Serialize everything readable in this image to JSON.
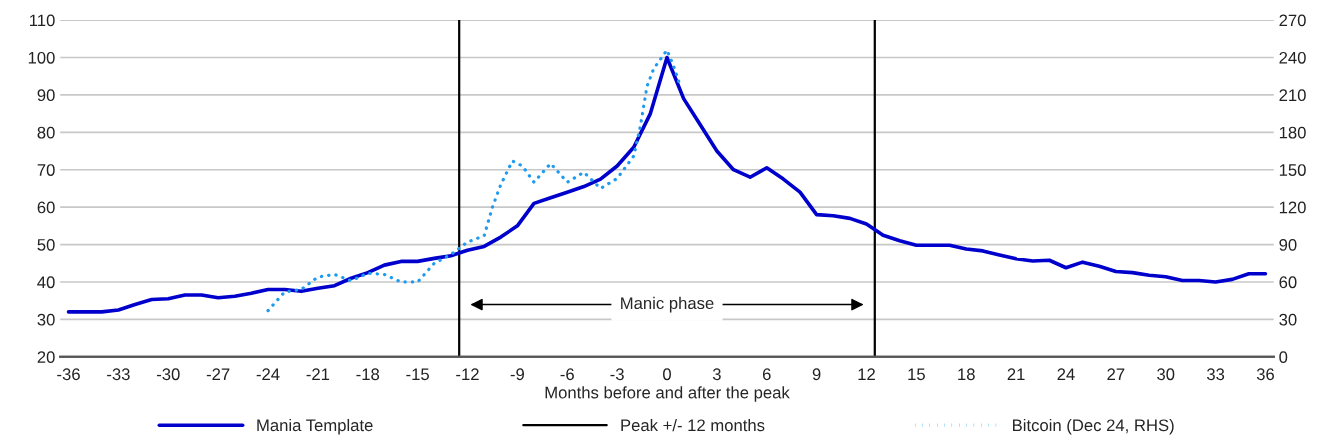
{
  "chart_data": {
    "type": "line",
    "xlabel": "Months before and after the peak",
    "x": [
      -36,
      -35,
      -34,
      -33,
      -32,
      -31,
      -30,
      -29,
      -28,
      -27,
      -26,
      -25,
      -24,
      -23,
      -22,
      -21,
      -20,
      -19,
      -18,
      -17,
      -16,
      -15,
      -14,
      -13,
      -12,
      -11,
      -10,
      -9,
      -8,
      -7,
      -6,
      -5,
      -4,
      -3,
      -2,
      -1,
      0,
      1,
      2,
      3,
      4,
      5,
      6,
      7,
      8,
      9,
      10,
      11,
      12,
      13,
      14,
      15,
      16,
      17,
      18,
      19,
      20,
      21,
      22,
      23,
      24,
      25,
      26,
      27,
      28,
      29,
      30,
      31,
      32,
      33,
      34,
      35,
      36
    ],
    "series": [
      {
        "name": "Mania Template",
        "color": "#0000cc",
        "line_style": "solid",
        "values": [
          32,
          32,
          32,
          32.5,
          34,
          35.3,
          35.5,
          36.5,
          36.5,
          35.8,
          36.2,
          37,
          38,
          38,
          37.5,
          38.3,
          39,
          41,
          42.5,
          44.5,
          45.5,
          45.5,
          46.3,
          47,
          48.5,
          49.5,
          52,
          55,
          61,
          62.5,
          64,
          65.5,
          67.5,
          71,
          76,
          85,
          100,
          89,
          82,
          75,
          70,
          68,
          70.5,
          67.5,
          64,
          58,
          57.7,
          57,
          55.5,
          52.5,
          51,
          49.8,
          49.8,
          49.8,
          48.8,
          48.3,
          47.2,
          46.2,
          45.6,
          45.8,
          43.8,
          45.3,
          44.2,
          42.8,
          42.5,
          41.8,
          41.4,
          40.4,
          40.4,
          40,
          40.7,
          42.2,
          42.2
        ]
      },
      {
        "name": "Bitcoin (Dec 24, RHS)",
        "color": "#1e9bf0",
        "line_style": "dotted",
        "axis": "y2",
        "x": [
          -24,
          -23,
          -22,
          -21,
          -20,
          -19,
          -18,
          -17,
          -16,
          -15,
          -14,
          -13,
          -12,
          -11,
          -10.5,
          -10,
          -9.3,
          -8.7,
          -8,
          -7,
          -6,
          -5,
          -4,
          -3,
          -2,
          -1.6,
          -1.2,
          -0.8,
          0,
          0.4,
          0.8
        ],
        "values": [
          37,
          52,
          54,
          64,
          66,
          61,
          67,
          66,
          60,
          60,
          75,
          82,
          92,
          97,
          120,
          138,
          157,
          153,
          140,
          155,
          140,
          148,
          135,
          143,
          161,
          185,
          217,
          231,
          246,
          233,
          217
        ]
      }
    ],
    "xlim": [
      -36.5,
      36.5
    ],
    "xticks": [
      -36,
      -33,
      -30,
      -27,
      -24,
      -21,
      -18,
      -15,
      -12,
      -9,
      -6,
      -3,
      0,
      3,
      6,
      9,
      12,
      15,
      18,
      21,
      24,
      27,
      30,
      33,
      36
    ],
    "ylim": [
      20,
      110
    ],
    "yticks": [
      20,
      30,
      40,
      50,
      60,
      70,
      80,
      90,
      100,
      110
    ],
    "y2lim": [
      0,
      270
    ],
    "y2ticks": [
      0,
      30,
      60,
      90,
      120,
      150,
      180,
      210,
      240,
      270
    ],
    "ref_lines": [
      {
        "axis": "x",
        "value": -12.5,
        "label": "Peak +/- 12 months",
        "color": "#000000",
        "line_style": "solid"
      },
      {
        "axis": "x",
        "value": 12.5,
        "color": "#000000",
        "line_style": "solid"
      }
    ],
    "annotations": [
      "Manic phase"
    ],
    "grid": "y",
    "legend": "bottom",
    "marker": "none"
  }
}
